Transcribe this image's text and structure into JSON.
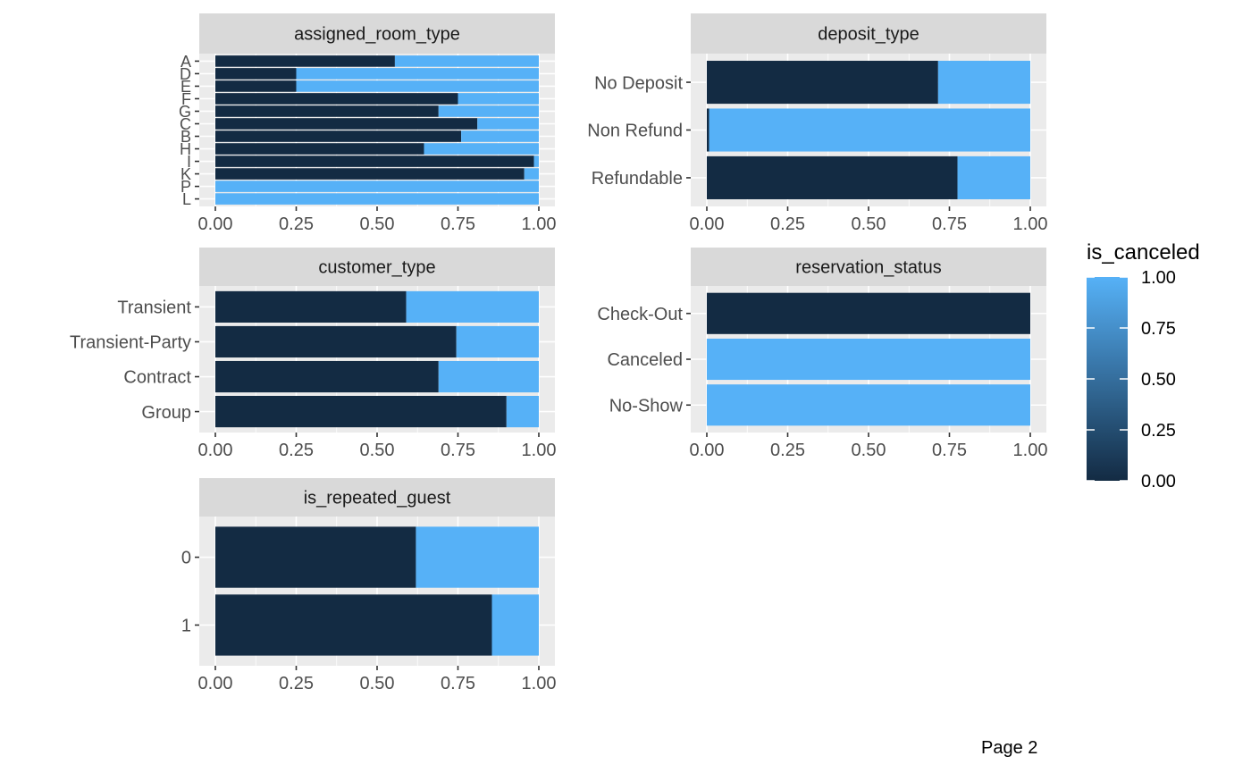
{
  "page": {
    "footer": "Page 2"
  },
  "colors": {
    "panel_bg": "#EBEBEB",
    "strip_bg": "#D9D9D9",
    "grid": "#FFFFFF",
    "low": "#132B43",
    "high": "#56B1F7",
    "axis_text": "#4D4D4D",
    "strip_text": "#1A1A1A"
  },
  "chart_data": [
    {
      "type": "bar",
      "orientation": "horizontal",
      "stacked": "fill",
      "title": "assigned_room_type",
      "categories": [
        "A",
        "D",
        "E",
        "F",
        "G",
        "C",
        "B",
        "H",
        "I",
        "K",
        "P",
        "L"
      ],
      "not_canceled_share": [
        0.555,
        0.25,
        0.25,
        0.75,
        0.69,
        0.81,
        0.76,
        0.645,
        0.985,
        0.955,
        0.0,
        0.0
      ],
      "xlim": [
        0,
        1
      ],
      "xticks": [
        "0.00",
        "0.25",
        "0.50",
        "0.75",
        "1.00"
      ]
    },
    {
      "type": "bar",
      "orientation": "horizontal",
      "stacked": "fill",
      "title": "deposit_type",
      "categories": [
        "No Deposit",
        "Non Refund",
        "Refundable"
      ],
      "not_canceled_share": [
        0.715,
        0.007,
        0.775
      ],
      "xlim": [
        0,
        1
      ],
      "xticks": [
        "0.00",
        "0.25",
        "0.50",
        "0.75",
        "1.00"
      ]
    },
    {
      "type": "bar",
      "orientation": "horizontal",
      "stacked": "fill",
      "title": "customer_type",
      "categories": [
        "Transient",
        "Transient-Party",
        "Contract",
        "Group"
      ],
      "not_canceled_share": [
        0.59,
        0.745,
        0.69,
        0.9
      ],
      "xlim": [
        0,
        1
      ],
      "xticks": [
        "0.00",
        "0.25",
        "0.50",
        "0.75",
        "1.00"
      ]
    },
    {
      "type": "bar",
      "orientation": "horizontal",
      "stacked": "fill",
      "title": "reservation_status",
      "categories": [
        "Check-Out",
        "Canceled",
        "No-Show"
      ],
      "not_canceled_share": [
        1.0,
        0.0,
        0.0
      ],
      "xlim": [
        0,
        1
      ],
      "xticks": [
        "0.00",
        "0.25",
        "0.50",
        "0.75",
        "1.00"
      ]
    },
    {
      "type": "bar",
      "orientation": "horizontal",
      "stacked": "fill",
      "title": "is_repeated_guest",
      "categories": [
        "0",
        "1"
      ],
      "not_canceled_share": [
        0.62,
        0.855
      ],
      "xlim": [
        0,
        1
      ],
      "xticks": [
        "0.00",
        "0.25",
        "0.50",
        "0.75",
        "1.00"
      ]
    }
  ],
  "legend": {
    "title": "is_canceled",
    "labels": [
      "1.00",
      "0.75",
      "0.50",
      "0.25",
      "0.00"
    ],
    "placement": "right"
  }
}
